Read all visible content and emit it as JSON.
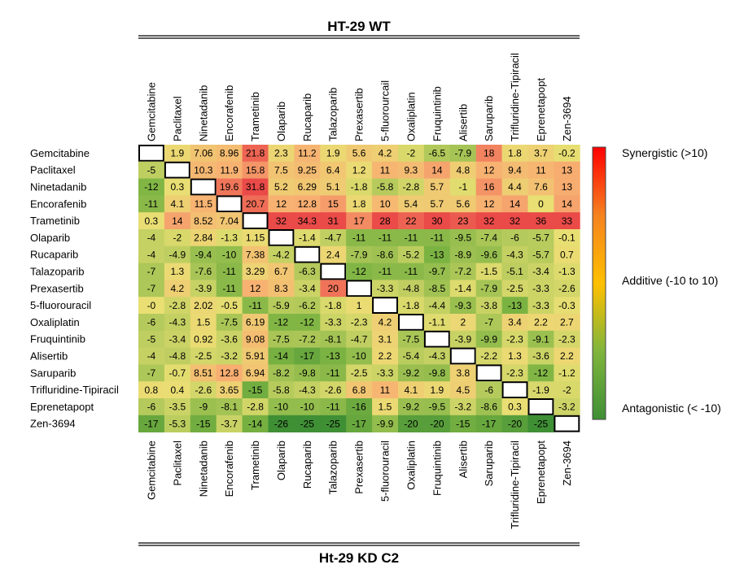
{
  "chart_data": {
    "type": "heatmap",
    "title_top": "HT-29 WT",
    "title_bottom": "Ht-29 KD C2",
    "labels": [
      "Gemcitabine",
      "Paclitaxel",
      "Ninetadanib",
      "Encorafenib",
      "Trametinib",
      "Olaparib",
      "Rucaparib",
      "Talazoparib",
      "Prexasertib",
      "5-fluorouracil",
      "Oxaliplatin",
      "Fruquintinib",
      "Alisertib",
      "Saruparib",
      "Trifluridine-Tipiracil",
      "Eprenetapopt",
      "Zen-3694"
    ],
    "col_labels_top": [
      "Gemcitabine",
      "Paclitaxel",
      "Ninetadanib",
      "Encorafenib",
      "Trametinib",
      "Olaparib",
      "Rucaparib",
      "Talazoparib",
      "Prexasertib",
      "5-fluorourcail",
      "Oxaliplatin",
      "Fruquintinib",
      "Alisertib",
      "Saruparib",
      "Trifluridine-Tipiracil",
      "Eprenetapopt",
      "Zen-3694"
    ],
    "col_labels_bottom": [
      "Gemcitabine",
      "Paclitaxel",
      "Ninetadanib",
      "Encorafenib",
      "Trametinib",
      "Olaparib",
      "Rucaparib",
      "Talazoparib",
      "Prexasertib",
      "5-fluorouracil",
      "Oxaliplatin",
      "Fruquintinib",
      "Alisertib",
      "Saruparib",
      "Trifluridine-Tipiracil",
      "Eprenetapopt",
      "Zen-3694"
    ],
    "values": [
      [
        null,
        "1.9",
        "7.06",
        "8.96",
        "21.8",
        "2.3",
        "11.2",
        "1.9",
        "5.6",
        "4.2",
        "-2",
        "-6.5",
        "-7.9",
        "18",
        "1.8",
        "3.7",
        "-0.2"
      ],
      [
        "-5",
        null,
        "10.3",
        "11.9",
        "15.8",
        "7.5",
        "9.25",
        "6.4",
        "1.2",
        "11",
        "9.3",
        "14",
        "4.8",
        "12",
        "9.4",
        "11",
        "13"
      ],
      [
        "-12",
        "0.3",
        null,
        "19.6",
        "31.8",
        "5.2",
        "6.29",
        "5.1",
        "-1.8",
        "-5.8",
        "-2.8",
        "5.7",
        "-1",
        "16",
        "4.4",
        "7.6",
        "13"
      ],
      [
        "-11",
        "4.1",
        "11.5",
        null,
        "20.7",
        "12",
        "12.8",
        "15",
        "1.8",
        "10",
        "5.4",
        "5.7",
        "5.6",
        "12",
        "14",
        "0",
        "14"
      ],
      [
        "0.3",
        "14",
        "8.52",
        "7.04",
        null,
        "32",
        "34.3",
        "31",
        "17",
        "28",
        "22",
        "30",
        "23",
        "32",
        "32",
        "36",
        "33"
      ],
      [
        "-4",
        "-2",
        "2.84",
        "-1.3",
        "1.15",
        null,
        "-1.4",
        "-4.7",
        "-11",
        "-11",
        "-11",
        "-11",
        "-9.5",
        "-7.4",
        "-6",
        "-5.7",
        "-0.1"
      ],
      [
        "-4",
        "-4.9",
        "-9.4",
        "-10",
        "7.38",
        "-4.2",
        null,
        "2.4",
        "-7.9",
        "-8.6",
        "-5.2",
        "-13",
        "-8.9",
        "-9.6",
        "-4.3",
        "-5.7",
        "0.7"
      ],
      [
        "-7",
        "1.3",
        "-7.6",
        "-11",
        "3.29",
        "6.7",
        "-6.3",
        null,
        "-12",
        "-11",
        "-11",
        "-9.7",
        "-7.2",
        "-1.5",
        "-5.1",
        "-3.4",
        "-1.3"
      ],
      [
        "-7",
        "4.2",
        "-3.9",
        "-11",
        "12",
        "8.3",
        "-3.4",
        "20",
        null,
        "-3.3",
        "-4.8",
        "-8.5",
        "-1.4",
        "-7.9",
        "-2.5",
        "-3.3",
        "-2.6"
      ],
      [
        "-0",
        "-2.8",
        "2.02",
        "-0.5",
        "-11",
        "-5.9",
        "-6.2",
        "-1.8",
        "1",
        null,
        "-1.8",
        "-4.4",
        "-9.3",
        "-3.8",
        "-13",
        "-3.3",
        "-0.3"
      ],
      [
        "-6",
        "-4.3",
        "1.5",
        "-7.5",
        "6.19",
        "-12",
        "-12",
        "-3.3",
        "-2.3",
        "4.2",
        null,
        "-1.1",
        "2",
        "-7",
        "3.4",
        "2.2",
        "2.7"
      ],
      [
        "-5",
        "-3.4",
        "0.92",
        "-3.6",
        "9.08",
        "-7.5",
        "-7.2",
        "-8.1",
        "-4.7",
        "3.1",
        "-7.5",
        null,
        "-3.9",
        "-9.9",
        "-2.3",
        "-9.1",
        "-2.3"
      ],
      [
        "-4",
        "-4.8",
        "-2.5",
        "-3.2",
        "5.91",
        "-14",
        "-17",
        "-13",
        "-10",
        "2.2",
        "-5.4",
        "-4.3",
        null,
        "-2.2",
        "1.3",
        "-3.6",
        "2.2"
      ],
      [
        "-7",
        "-0.7",
        "8.51",
        "12.8",
        "6.94",
        "-8.2",
        "-9.8",
        "-11",
        "-2.5",
        "-3.3",
        "-9.2",
        "-9.8",
        "3.8",
        null,
        "-2.3",
        "-12",
        "-1.2"
      ],
      [
        "0.8",
        "0.4",
        "-2.6",
        "3.65",
        "-15",
        "-5.8",
        "-4.3",
        "-2.6",
        "6.8",
        "11",
        "4.1",
        "1.9",
        "4.5",
        "-6",
        null,
        "-1.9",
        "-2"
      ],
      [
        "-6",
        "-3.5",
        "-9",
        "-8.1",
        "-2.8",
        "-10",
        "-10",
        "-11",
        "-16",
        "1.5",
        "-9.2",
        "-9.5",
        "-3.2",
        "-8.6",
        "0.3",
        null,
        "-3.2"
      ],
      [
        "-17",
        "-5.3",
        "-15",
        "-3.7",
        "-14",
        "-26",
        "-25",
        "-25",
        "-17",
        "-9.9",
        "-20",
        "-20",
        "-15",
        "-17",
        "-20",
        "-25",
        null
      ]
    ],
    "color_scale": {
      "min": -25,
      "max": 25,
      "colors": [
        "#3f8f35",
        "#7db443",
        "#e9df73",
        "#f8b072",
        "#ea4a48"
      ],
      "bar_colors": [
        "#3f8f35",
        "#7fb53c",
        "#ffc000",
        "#f58220",
        "#ff0000"
      ],
      "labels": [
        "Synergistic (>10)",
        "Additive (-10 to 10)",
        "Antagonistic (< -10)"
      ]
    }
  }
}
